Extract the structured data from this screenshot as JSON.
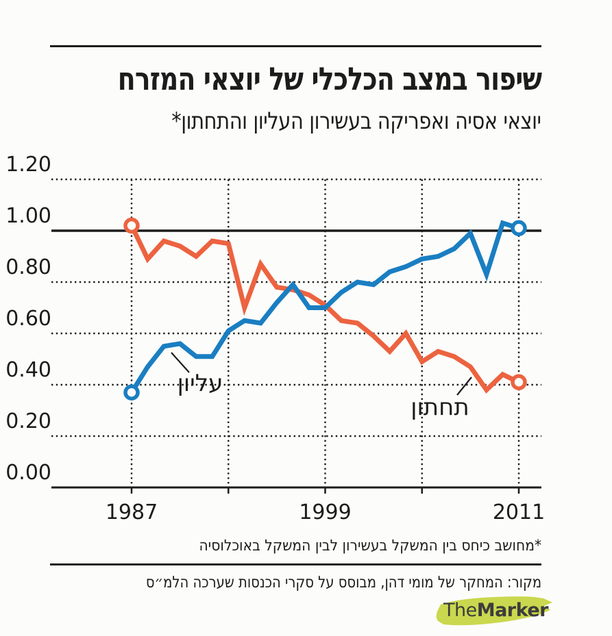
{
  "page": {
    "background": "#fcfcfa",
    "ink": "#1c1c1c"
  },
  "header": {
    "title": "שיפור במצב הכלכלי של יוצאי המזרח",
    "subtitle": "יוצאי אסיה ואפריקה בעשירון העליון והתחתון*"
  },
  "chart_data": {
    "type": "line",
    "x": [
      1987,
      1988,
      1989,
      1990,
      1991,
      1992,
      1993,
      1994,
      1995,
      1996,
      1997,
      1998,
      1999,
      2000,
      2001,
      2002,
      2003,
      2004,
      2005,
      2006,
      2007,
      2008,
      2009,
      2010,
      2011
    ],
    "x_tick_labels": [
      "1987",
      "1999",
      "2011"
    ],
    "x_tick_years": [
      1987,
      1999,
      2011
    ],
    "x_gridline_years": [
      1987,
      1993,
      1999,
      2005,
      2011
    ],
    "y_tick_labels": [
      "0.00",
      "0.20",
      "0.40",
      "0.60",
      "0.80",
      "1.00",
      "1.20"
    ],
    "ylim": [
      0,
      1.2
    ],
    "reference_value": 1.0,
    "grid": "dotted",
    "series": [
      {
        "name": "תחתון",
        "color": "#ec6340",
        "values": [
          1.02,
          0.89,
          0.96,
          0.94,
          0.9,
          0.96,
          0.95,
          0.7,
          0.87,
          0.78,
          0.77,
          0.75,
          0.71,
          0.65,
          0.64,
          0.59,
          0.53,
          0.6,
          0.49,
          0.53,
          0.51,
          0.47,
          0.38,
          0.44,
          0.41
        ]
      },
      {
        "name": "עליון",
        "color": "#1a7ec2",
        "values": [
          0.37,
          0.47,
          0.55,
          0.56,
          0.51,
          0.51,
          0.61,
          0.65,
          0.64,
          0.72,
          0.79,
          0.7,
          0.7,
          0.76,
          0.8,
          0.79,
          0.84,
          0.86,
          0.89,
          0.9,
          0.93,
          0.99,
          0.83,
          1.03,
          1.01
        ]
      }
    ],
    "annotations": [
      {
        "label": "תחתון"
      },
      {
        "label": "עליון"
      }
    ]
  },
  "footnote": "*מחושב כיחס בין המשקל בעשירון לבין המשקל באוכלוסיה",
  "source": "מקור: המחקר של מומי דהן, מבוסס על סקרי הכנסות שערכה הלמ״ס",
  "logo": {
    "part1": "The",
    "part2": "Marker",
    "highlight_color": "#c9d84e",
    "text_color": "#3c3c3c"
  }
}
